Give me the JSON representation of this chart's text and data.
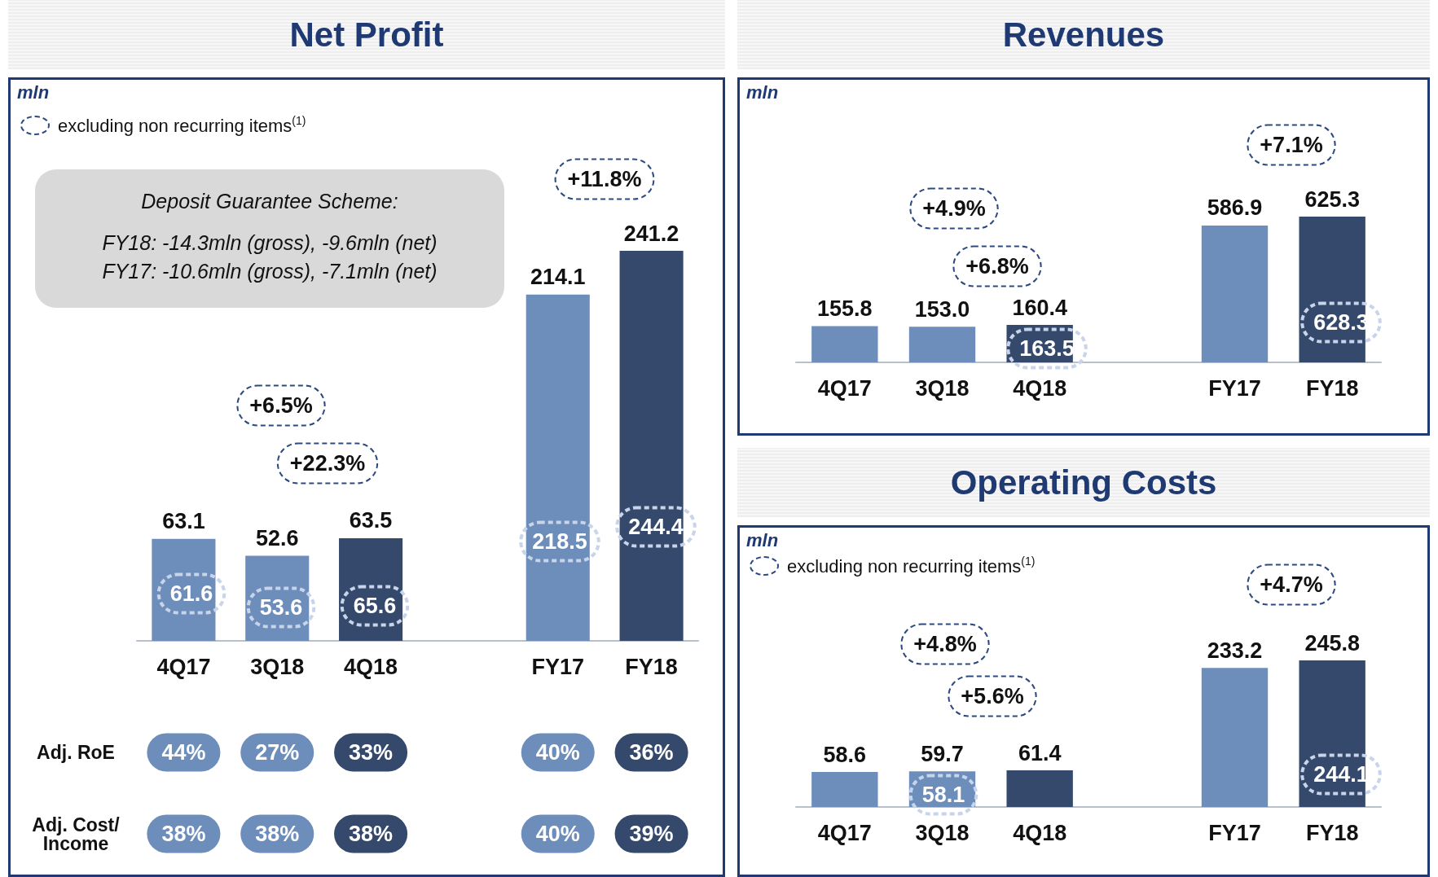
{
  "chart_data": [
    {
      "type": "bar",
      "title": "Net Profit",
      "ylabel": "mln",
      "categories": [
        "4Q17",
        "3Q18",
        "4Q18",
        null,
        "FY17",
        "FY18"
      ],
      "values": [
        63.1,
        52.6,
        63.5,
        null,
        214.1,
        241.2
      ],
      "colors": [
        "#6d8dba",
        "#6d8dba",
        "#34496b",
        null,
        "#6d8dba",
        "#34496b"
      ],
      "data_labels": true,
      "tick_labels": "x",
      "annotations": [
        "excluding non recurring items$^{(1)}$",
        "Deposit Guarantee Scheme:",
        "FY18: -14.3mln (gross), -9.6mln (net)",
        "FY17: -10.6mln (gross), -7.1mln (net)",
        "+6.5%",
        "+22.3%",
        "+11.8%",
        "61.6",
        "53.6",
        "65.6",
        "218.5",
        "244.4",
        "Adj. RoE",
        "44%",
        "27%",
        "33%",
        "40%",
        "36%",
        "Adj. Cost/Income",
        "38%",
        "38%",
        "38%",
        "40%",
        "39%"
      ]
    },
    {
      "type": "bar",
      "title": "Revenues",
      "ylabel": "mln",
      "categories": [
        "4Q17",
        "3Q18",
        "4Q18",
        null,
        "FY17",
        "FY18"
      ],
      "values": [
        155.8,
        153.0,
        160.4,
        null,
        586.9,
        625.3
      ],
      "value_labels": [
        "155.8",
        "153.0",
        "160.4",
        null,
        "586.9",
        "625.3"
      ],
      "colors": [
        "#6d8dba",
        "#6d8dba",
        "#34496b",
        null,
        "#6d8dba",
        "#34496b"
      ],
      "tick_labels": "x",
      "annotations": [
        "+4.9%",
        "+6.8%",
        "+7.1%",
        "163.5",
        "628.3"
      ]
    },
    {
      "type": "bar",
      "title": "Operating Costs",
      "ylabel": "mln",
      "categories": [
        "4Q17",
        "3Q18",
        "4Q18",
        null,
        "FY17",
        "FY18"
      ],
      "values": [
        58.6,
        59.7,
        61.4,
        null,
        233.2,
        245.8
      ],
      "colors": [
        "#6d8dba",
        "#6d8dba",
        "#34496b",
        null,
        "#6d8dba",
        "#34496b"
      ],
      "data_labels": true,
      "tick_labels": "x",
      "annotations": [
        "excluding non recurring items$^{(1)}$",
        "+4.8%",
        "+5.6%",
        "+4.7%",
        "58.1",
        "244.1"
      ]
    }
  ]
}
